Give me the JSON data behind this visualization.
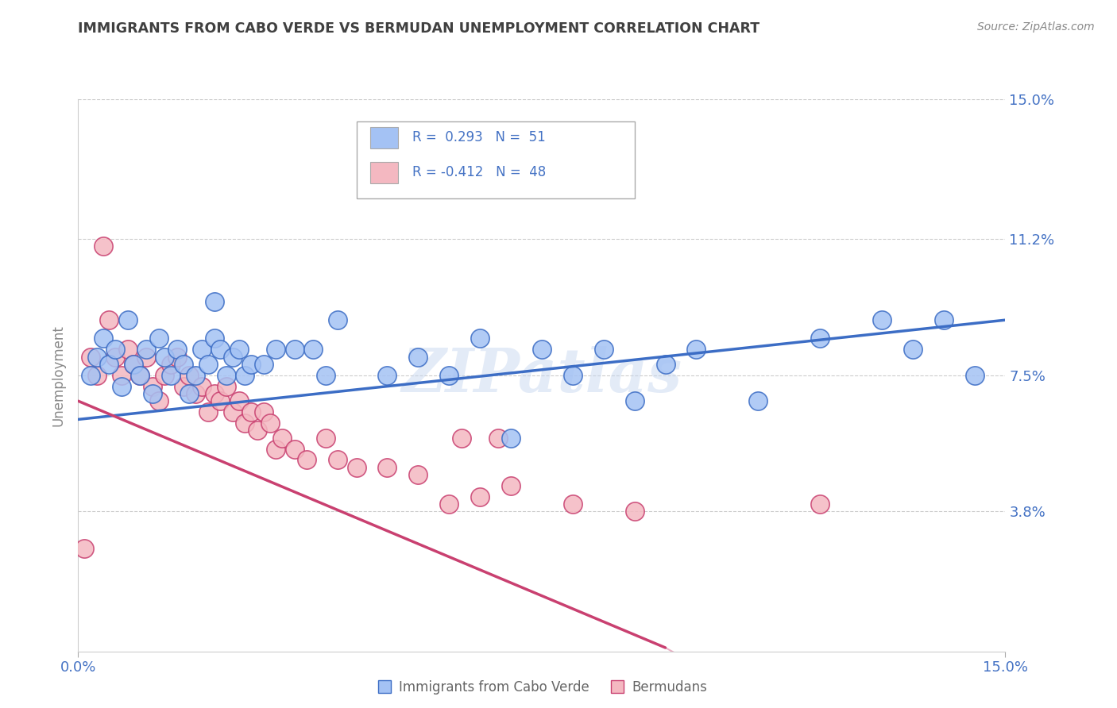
{
  "title": "IMMIGRANTS FROM CABO VERDE VS BERMUDAN UNEMPLOYMENT CORRELATION CHART",
  "source": "Source: ZipAtlas.com",
  "ylabel": "Unemployment",
  "xlim": [
    0.0,
    0.15
  ],
  "ylim": [
    0.0,
    0.15
  ],
  "ytick_labels": [
    "",
    "3.8%",
    "7.5%",
    "11.2%",
    "15.0%"
  ],
  "ytick_values": [
    0.0,
    0.038,
    0.075,
    0.112,
    0.15
  ],
  "legend_entries": [
    "Immigrants from Cabo Verde",
    "Bermudans"
  ],
  "legend_R1": "R =  0.293   N =  51",
  "legend_R2": "R = -0.412   N =  48",
  "blue_color": "#a4c2f4",
  "pink_color": "#f4b8c1",
  "line_blue": "#3c6dc5",
  "line_pink": "#c94070",
  "watermark": "ZIPatlas",
  "title_color": "#404040",
  "axis_label_color": "#4472c4",
  "blue_scatter_x": [
    0.002,
    0.003,
    0.004,
    0.005,
    0.006,
    0.007,
    0.008,
    0.009,
    0.01,
    0.011,
    0.012,
    0.013,
    0.014,
    0.015,
    0.016,
    0.017,
    0.018,
    0.019,
    0.02,
    0.021,
    0.022,
    0.023,
    0.024,
    0.025,
    0.026,
    0.027,
    0.028,
    0.03,
    0.032,
    0.022,
    0.035,
    0.038,
    0.04,
    0.042,
    0.05,
    0.055,
    0.06,
    0.065,
    0.07,
    0.075,
    0.08,
    0.085,
    0.09,
    0.095,
    0.1,
    0.11,
    0.12,
    0.13,
    0.135,
    0.14,
    0.145
  ],
  "blue_scatter_y": [
    0.075,
    0.08,
    0.085,
    0.078,
    0.082,
    0.072,
    0.09,
    0.078,
    0.075,
    0.082,
    0.07,
    0.085,
    0.08,
    0.075,
    0.082,
    0.078,
    0.07,
    0.075,
    0.082,
    0.078,
    0.085,
    0.082,
    0.075,
    0.08,
    0.082,
    0.075,
    0.078,
    0.078,
    0.082,
    0.095,
    0.082,
    0.082,
    0.075,
    0.09,
    0.075,
    0.08,
    0.075,
    0.085,
    0.058,
    0.082,
    0.075,
    0.082,
    0.068,
    0.078,
    0.082,
    0.068,
    0.085,
    0.09,
    0.082,
    0.09,
    0.075
  ],
  "pink_scatter_x": [
    0.001,
    0.002,
    0.003,
    0.004,
    0.005,
    0.006,
    0.007,
    0.008,
    0.009,
    0.01,
    0.011,
    0.012,
    0.013,
    0.014,
    0.015,
    0.016,
    0.017,
    0.018,
    0.019,
    0.02,
    0.021,
    0.022,
    0.023,
    0.024,
    0.025,
    0.026,
    0.027,
    0.028,
    0.029,
    0.03,
    0.031,
    0.032,
    0.033,
    0.035,
    0.037,
    0.04,
    0.042,
    0.045,
    0.05,
    0.055,
    0.06,
    0.062,
    0.065,
    0.068,
    0.07,
    0.08,
    0.09,
    0.12
  ],
  "pink_scatter_y": [
    0.028,
    0.08,
    0.075,
    0.11,
    0.09,
    0.08,
    0.075,
    0.082,
    0.078,
    0.075,
    0.08,
    0.072,
    0.068,
    0.075,
    0.078,
    0.08,
    0.072,
    0.075,
    0.07,
    0.072,
    0.065,
    0.07,
    0.068,
    0.072,
    0.065,
    0.068,
    0.062,
    0.065,
    0.06,
    0.065,
    0.062,
    0.055,
    0.058,
    0.055,
    0.052,
    0.058,
    0.052,
    0.05,
    0.05,
    0.048,
    0.04,
    0.058,
    0.042,
    0.058,
    0.045,
    0.04,
    0.038,
    0.04
  ],
  "blue_line_x": [
    0.0,
    0.15
  ],
  "blue_line_y": [
    0.063,
    0.09
  ],
  "pink_line_x": [
    0.0,
    0.095
  ],
  "pink_line_y": [
    0.068,
    0.001
  ]
}
